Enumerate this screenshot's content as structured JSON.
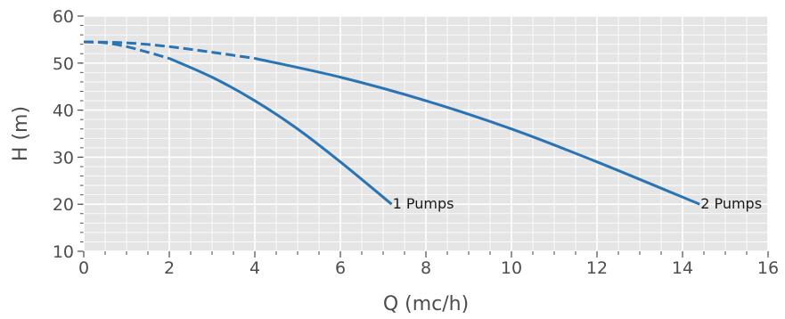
{
  "chart_data": {
    "type": "line",
    "title": "",
    "xlabel": "Q (mc/h)",
    "ylabel": "H (m)",
    "xlim": [
      0,
      16
    ],
    "ylim": [
      10,
      60
    ],
    "xticks": [
      "0",
      "2",
      "4",
      "6",
      "8",
      "10",
      "12",
      "14",
      "16"
    ],
    "yticks": [
      "10",
      "20",
      "30",
      "40",
      "50",
      "60"
    ],
    "grid": true,
    "colors": {
      "series": "#2a74b3",
      "plot_bg": "#e5e5e5",
      "grid": "#ffffff",
      "text": "#4d4d4d"
    },
    "series": [
      {
        "name": "1 Pumps",
        "dashed": {
          "x": [
            0,
            0.5,
            1.0,
            1.5,
            2.0
          ],
          "y": [
            54.5,
            54.3,
            53.5,
            52.3,
            51.0
          ]
        },
        "solid": {
          "x": [
            2.0,
            3.0,
            4.0,
            5.0,
            6.0,
            7.2
          ],
          "y": [
            51.0,
            47.0,
            42.0,
            36.0,
            29.0,
            20.0
          ]
        }
      },
      {
        "name": "2 Pumps",
        "dashed": {
          "x": [
            0,
            1.0,
            2.0,
            3.0,
            4.0
          ],
          "y": [
            54.5,
            54.3,
            53.5,
            52.3,
            51.0
          ]
        },
        "solid": {
          "x": [
            4.0,
            6.0,
            8.0,
            10.0,
            12.0,
            14.4
          ],
          "y": [
            51.0,
            47.0,
            42.0,
            36.0,
            29.0,
            20.0
          ]
        }
      }
    ]
  }
}
